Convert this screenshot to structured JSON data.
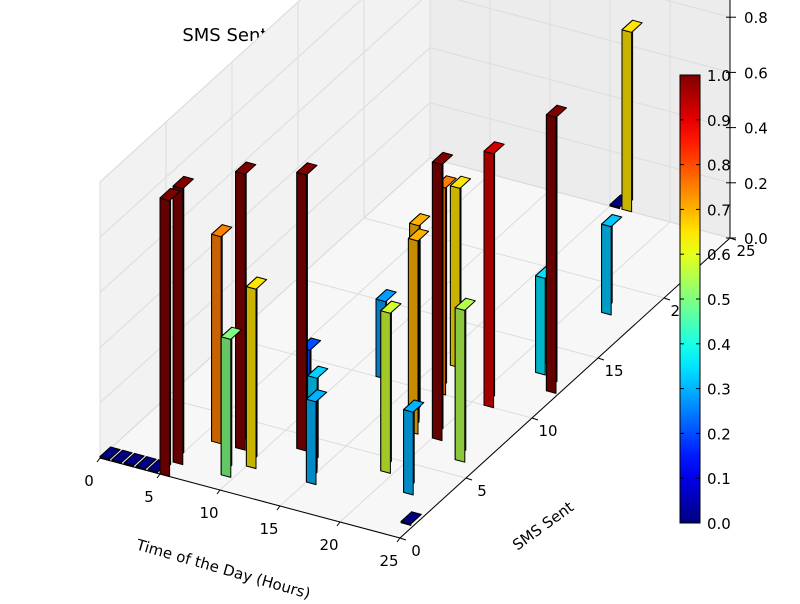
{
  "chart_data": {
    "type": "bar3d",
    "title": "SMS Sent on Wednesday - User 6",
    "xlabel": "Time of the Day (Hours)",
    "ylabel": "SMS Sent",
    "zlabel": "",
    "xlim": [
      0,
      25
    ],
    "ylim": [
      0,
      25
    ],
    "zlim": [
      0,
      1.0
    ],
    "xticks": [
      "0",
      "5",
      "10",
      "15",
      "20",
      "25"
    ],
    "yticks": [
      "0",
      "5",
      "10",
      "15",
      "20",
      "25"
    ],
    "zticks": [
      "0.0",
      "0.2",
      "0.4",
      "0.6",
      "0.8",
      "1.0"
    ],
    "grid": true,
    "colormap": "jet",
    "colorbar": {
      "ticks": [
        "0.0",
        "0.1",
        "0.2",
        "0.3",
        "0.4",
        "0.5",
        "0.6",
        "0.7",
        "0.8",
        "0.9",
        "1.0"
      ],
      "range": [
        0,
        1
      ]
    },
    "bars": [
      {
        "x": 0,
        "y": 0,
        "value": 0.0
      },
      {
        "x": 1,
        "y": 0,
        "value": 0.0
      },
      {
        "x": 2,
        "y": 0,
        "value": 0.0
      },
      {
        "x": 3,
        "y": 0,
        "value": 0.0
      },
      {
        "x": 4,
        "y": 0,
        "value": 0.0
      },
      {
        "x": 5,
        "y": 0,
        "value": 1.0
      },
      {
        "x": 5,
        "y": 1,
        "value": 1.0
      },
      {
        "x": 6,
        "y": 3,
        "value": 0.75
      },
      {
        "x": 8,
        "y": 3,
        "value": 1.0
      },
      {
        "x": 9,
        "y": 7,
        "value": 0.2
      },
      {
        "x": 9,
        "y": 1,
        "value": 0.5
      },
      {
        "x": 10,
        "y": 2,
        "value": 0.65
      },
      {
        "x": 12,
        "y": 4,
        "value": 1.0
      },
      {
        "x": 12,
        "y": 10,
        "value": 0.28
      },
      {
        "x": 14,
        "y": 3,
        "value": 0.33
      },
      {
        "x": 15,
        "y": 2,
        "value": 0.3
      },
      {
        "x": 16,
        "y": 12,
        "value": 0.65
      },
      {
        "x": 17,
        "y": 10,
        "value": 0.75
      },
      {
        "x": 17,
        "y": 8,
        "value": 0.7
      },
      {
        "x": 18,
        "y": 7,
        "value": 0.7
      },
      {
        "x": 19,
        "y": 4,
        "value": 0.58
      },
      {
        "x": 20,
        "y": 7,
        "value": 1.0
      },
      {
        "x": 21,
        "y": 10,
        "value": 0.92
      },
      {
        "x": 22,
        "y": 13,
        "value": 0.35
      },
      {
        "x": 22,
        "y": 18,
        "value": 0.32
      },
      {
        "x": 22,
        "y": 3,
        "value": 0.3
      },
      {
        "x": 23,
        "y": 6,
        "value": 0.55
      },
      {
        "x": 24,
        "y": 1,
        "value": 0.0
      },
      {
        "x": 24,
        "y": 12,
        "value": 1.0
      },
      {
        "x": 15,
        "y": 25,
        "value": 0.0
      },
      {
        "x": 16,
        "y": 25,
        "value": 0.65
      }
    ]
  }
}
